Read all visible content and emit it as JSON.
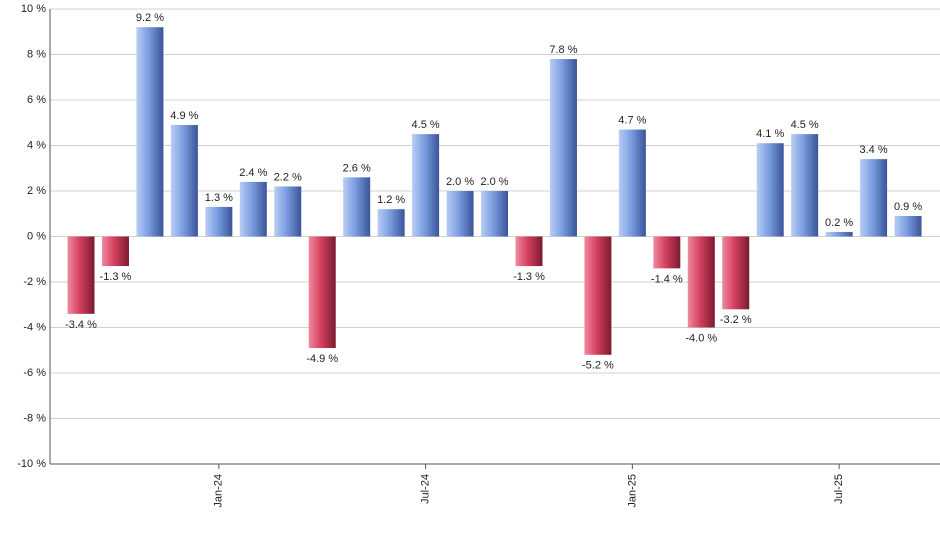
{
  "chart_data": {
    "type": "bar",
    "categories": [
      null,
      null,
      null,
      null,
      "Jan-24",
      null,
      null,
      null,
      null,
      null,
      "Jul-24",
      null,
      null,
      null,
      null,
      null,
      "Jan-25",
      null,
      null,
      null,
      null,
      null,
      "Jul-25",
      null,
      null
    ],
    "values": [
      -3.4,
      -1.3,
      9.2,
      4.9,
      1.3,
      2.4,
      2.2,
      -4.9,
      2.6,
      1.2,
      4.5,
      2.0,
      2.0,
      -1.3,
      7.8,
      -5.2,
      4.7,
      -1.4,
      -4.0,
      -3.2,
      4.1,
      4.5,
      0.2,
      3.4,
      0.9
    ],
    "value_labels": [
      "-3.4 %",
      "-1.3 %",
      "9.2 %",
      "4.9 %",
      "1.3 %",
      "2.4 %",
      "2.2 %",
      "-4.9 %",
      "2.6 %",
      "1.2 %",
      "4.5 %",
      "2.0 %",
      "2.0 %",
      "-1.3 %",
      "7.8 %",
      "-5.2 %",
      "4.7 %",
      "-1.4 %",
      "-4.0 %",
      "-3.2 %",
      "4.1 %",
      "4.5 %",
      "0.2 %",
      "3.4 %",
      "0.9 %"
    ],
    "positive_color": "#7b9de0",
    "negative_color": "#d4405f",
    "ylim": [
      -10,
      10
    ],
    "yticks": [
      {
        "value": -10,
        "label": "-10 %"
      },
      {
        "value": -8,
        "label": "-8 %"
      },
      {
        "value": -6,
        "label": "-6 %"
      },
      {
        "value": -4,
        "label": "-4 %"
      },
      {
        "value": -2,
        "label": "-2 %"
      },
      {
        "value": 0,
        "label": "0 %"
      },
      {
        "value": 2,
        "label": "2 %"
      },
      {
        "value": 4,
        "label": "4 %"
      },
      {
        "value": 6,
        "label": "6 %"
      },
      {
        "value": 8,
        "label": "8 %"
      },
      {
        "value": 10,
        "label": "10 %"
      }
    ],
    "grid": true
  }
}
